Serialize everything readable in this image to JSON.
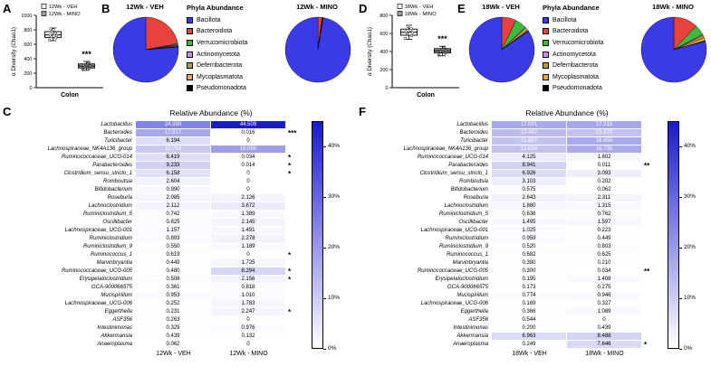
{
  "chart_data": [
    {
      "panel": "A",
      "type": "box",
      "ylabel": "α Diversity (Chao1)",
      "xlabel": "Colon",
      "ylim": [
        0,
        1000
      ],
      "yticks": [
        0,
        200,
        400,
        600,
        800,
        1000
      ],
      "groups": [
        {
          "label": "12Wk - VEH",
          "fill": "#ffffff",
          "whisker_low": 650,
          "q1": 695,
          "median": 730,
          "q3": 775,
          "whisker_high": 825,
          "points": [
            660,
            690,
            705,
            720,
            728,
            740,
            755,
            775,
            800,
            815
          ]
        },
        {
          "label": "12Wk - MINO",
          "fill": "#9e9e9e",
          "whisker_low": 240,
          "q1": 272,
          "median": 298,
          "q3": 328,
          "whisker_high": 362,
          "points": [
            248,
            270,
            288,
            300,
            312,
            330,
            352
          ]
        }
      ],
      "significance": {
        "group": 1,
        "text": "***"
      }
    },
    {
      "panel": "B",
      "type": "pie",
      "legend_title": "Phyla Abundance",
      "categories": [
        "Bacillota",
        "Bacteroidota",
        "Verrucomicrobiota",
        "Actinomycetota",
        "Deferribacterota",
        "Mycoplasmatota",
        "Pseudomonadota"
      ],
      "colors": [
        "#3a3ae6",
        "#e8423c",
        "#3dbb3d",
        "#cc8ef0",
        "#b39b3f",
        "#f2a93b",
        "#000000"
      ],
      "pies": [
        {
          "title": "12Wk - VEH",
          "values": [
            76.25,
            22.0,
            0.45,
            0.4,
            0.4,
            0.3,
            0.2
          ]
        },
        {
          "title": "12Wk - MINO",
          "values": [
            97.3,
            2.0,
            0.2,
            0.15,
            0.15,
            0.1,
            0.1
          ]
        }
      ]
    },
    {
      "panel": "C",
      "type": "heatmap",
      "title": "Relative Abundance (%)",
      "columns": [
        "12Wk - VEH",
        "12Wk - MINO"
      ],
      "rows": [
        [
          "Lactobacillus",
          "24.399",
          "44.509",
          ""
        ],
        [
          "Bacteroides",
          "17.317",
          "0.016",
          "***"
        ],
        [
          "Turicibacter",
          "6.194",
          "0",
          ""
        ],
        [
          "Lachnospiraceae_NK4A136_group",
          "10.759",
          "19.080",
          ""
        ],
        [
          "Ruminococcaceae_UCG-014",
          "6.419",
          "0.034",
          "*"
        ],
        [
          "Parabacteroides",
          "9.233",
          "0.014",
          "*"
        ],
        [
          "Clostridium_sensu_stricto_1",
          "6.158",
          "0",
          "*"
        ],
        [
          "Romboutsia",
          "2.604",
          "0",
          ""
        ],
        [
          "Bifidobacterium",
          "0.990",
          "0",
          ""
        ],
        [
          "Roseburia",
          "2.085",
          "2.126",
          ""
        ],
        [
          "Lachnoclostridium",
          "2.112",
          "3.672",
          ""
        ],
        [
          "Ruminiclostridium_5",
          "0.742",
          "1.389",
          ""
        ],
        [
          "Oscillibacter",
          "0.825",
          "2.145",
          ""
        ],
        [
          "Lachnospiraceae_UCG-001",
          "1.157",
          "1.491",
          ""
        ],
        [
          "Ruminiclostridium",
          "0.893",
          "2.278",
          ""
        ],
        [
          "Ruminiclostridium_9",
          "0.550",
          "1.189",
          ""
        ],
        [
          "Ruminococcus_1",
          "0.619",
          "0",
          "*"
        ],
        [
          "Marvinbryantia",
          "0.449",
          "1.725",
          ""
        ],
        [
          "Ruminococcaceae_UCG-005",
          "0.480",
          "8.294",
          "*"
        ],
        [
          "Erysipelatoclostridium",
          "0.508",
          "2.156",
          "*"
        ],
        [
          "GCA-900066575",
          "0.361",
          "0.818",
          ""
        ],
        [
          "Mucispirillum",
          "0.953",
          "1.010",
          ""
        ],
        [
          "Lachnospiraceae_UCG-006",
          "0.252",
          "1.783",
          ""
        ],
        [
          "Eggerthella",
          "0.231",
          "2.247",
          "*"
        ],
        [
          "ASF356",
          "0.263",
          "0",
          ""
        ],
        [
          "Intestinimonas",
          "0.329",
          "0.976",
          ""
        ],
        [
          "Akkermansia",
          "0.439",
          "0.132",
          ""
        ],
        [
          "Anaeroplasma",
          "0.062",
          "0",
          ""
        ]
      ],
      "colorbar": {
        "vmax": 45,
        "ticks": [
          {
            "label": "40%",
            "value": 40
          },
          {
            "label": "30%",
            "value": 30
          },
          {
            "label": "20%",
            "value": 20
          },
          {
            "label": "10%",
            "value": 10
          },
          {
            "label": "0%",
            "value": 0
          }
        ]
      }
    },
    {
      "panel": "D",
      "type": "box",
      "ylabel": "α Diversity (Chao1)",
      "xlabel": "Colon",
      "ylim": [
        0,
        800
      ],
      "yticks": [
        0,
        200,
        400,
        600,
        800
      ],
      "groups": [
        {
          "label": "18Wk - VEH",
          "fill": "#ffffff",
          "whisker_low": 535,
          "q1": 580,
          "median": 612,
          "q3": 648,
          "whisker_high": 690,
          "points": [
            545,
            575,
            595,
            610,
            620,
            635,
            655,
            678
          ]
        },
        {
          "label": "18Wk - MINO",
          "fill": "#9e9e9e",
          "whisker_low": 352,
          "q1": 385,
          "median": 408,
          "q3": 432,
          "whisker_high": 458,
          "points": [
            360,
            382,
            400,
            412,
            425,
            445
          ]
        }
      ],
      "significance": {
        "group": 1,
        "text": "***"
      }
    },
    {
      "panel": "E",
      "type": "pie",
      "legend_title": "Phyla Abundance",
      "categories": [
        "Bacillota",
        "Bacteroidota",
        "Verrucomicrobiota",
        "Actinomycetota",
        "Deferribacterota",
        "Mycoplasmatota",
        "Pseudomonadota"
      ],
      "colors": [
        "#3a3ae6",
        "#e8423c",
        "#3dbb3d",
        "#cc8ef0",
        "#b39b3f",
        "#f2a93b",
        "#000000"
      ],
      "pies": [
        {
          "title": "18Wk - VEH",
          "values": [
            84.6,
            7.2,
            5.6,
            0.4,
            1.5,
            0.4,
            0.3
          ]
        },
        {
          "title": "18Wk - MINO",
          "values": [
            79.2,
            12.0,
            5.2,
            0.5,
            1.3,
            1.5,
            0.3
          ]
        }
      ]
    },
    {
      "panel": "F",
      "type": "heatmap",
      "title": "Relative Abundance (%)",
      "columns": [
        "18Wk - VEH",
        "18Wk - MINO"
      ],
      "rows": [
        [
          "Lactobacillus",
          "17.091",
          "17.215",
          ""
        ],
        [
          "Bacteroides",
          "13.487",
          "12.270",
          ""
        ],
        [
          "Turicibacter",
          "11.857",
          "16.850",
          ""
        ],
        [
          "Lachnospiraceae_NK4A136_group",
          "12.024",
          "16.735",
          ""
        ],
        [
          "Ruminococcaceae_UCG-014",
          "4.125",
          "1.802",
          ""
        ],
        [
          "Parabacteroides",
          "8.941",
          "0.011",
          "**"
        ],
        [
          "Clostridium_sensu_stricto_1",
          "6.926",
          "3.093",
          ""
        ],
        [
          "Romboutsia",
          "3.103",
          "0.202",
          ""
        ],
        [
          "Bifidobacterium",
          "0.575",
          "0.062",
          ""
        ],
        [
          "Roseburia",
          "2.643",
          "2.311",
          ""
        ],
        [
          "Lachnoclostridium",
          "1.880",
          "1.315",
          ""
        ],
        [
          "Ruminiclostridium_5",
          "0.636",
          "0.762",
          ""
        ],
        [
          "Oscillibacter",
          "1.495",
          "1.597",
          ""
        ],
        [
          "Lachnospiraceae_UCG-001",
          "1.025",
          "0.223",
          ""
        ],
        [
          "Ruminiclostridium",
          "0.959",
          "0.449",
          ""
        ],
        [
          "Ruminiclostridium_9",
          "0.520",
          "0.803",
          ""
        ],
        [
          "Ruminococcus_1",
          "0.682",
          "0.625",
          ""
        ],
        [
          "Marvinbryantia",
          "0.380",
          "0.210",
          ""
        ],
        [
          "Ruminococcaceae_UCG-005",
          "0.300",
          "0.034",
          "**"
        ],
        [
          "Erysipelatoclostridium",
          "0.195",
          "1.408",
          ""
        ],
        [
          "GCA-900066575",
          "0.173",
          "0.275",
          ""
        ],
        [
          "Mucispirillum",
          "0.774",
          "0.946",
          ""
        ],
        [
          "Lachnospiraceae_UCG-006",
          "0.169",
          "0.327",
          ""
        ],
        [
          "Eggerthella",
          "0.366",
          "1.089",
          ""
        ],
        [
          "ASF356",
          "0.544",
          "0",
          ""
        ],
        [
          "Intestinimonas",
          "0.200",
          "0.439",
          ""
        ],
        [
          "Akkermansia",
          "6.963",
          "8.488",
          ""
        ],
        [
          "Anaeroplasma",
          "0.249",
          "7.646",
          "*"
        ]
      ],
      "colorbar": {
        "vmax": 45,
        "ticks": [
          {
            "label": "40%",
            "value": 40
          },
          {
            "label": "30%",
            "value": 30
          },
          {
            "label": "20%",
            "value": 20
          },
          {
            "label": "10%",
            "value": 10
          },
          {
            "label": "0%",
            "value": 0
          }
        ]
      }
    }
  ],
  "colors": {
    "heatmap_max": "#1a1ace",
    "heatmap_min": "#ffffff",
    "veh_fill": "#ffffff",
    "mino_fill": "#9e9e9e"
  }
}
